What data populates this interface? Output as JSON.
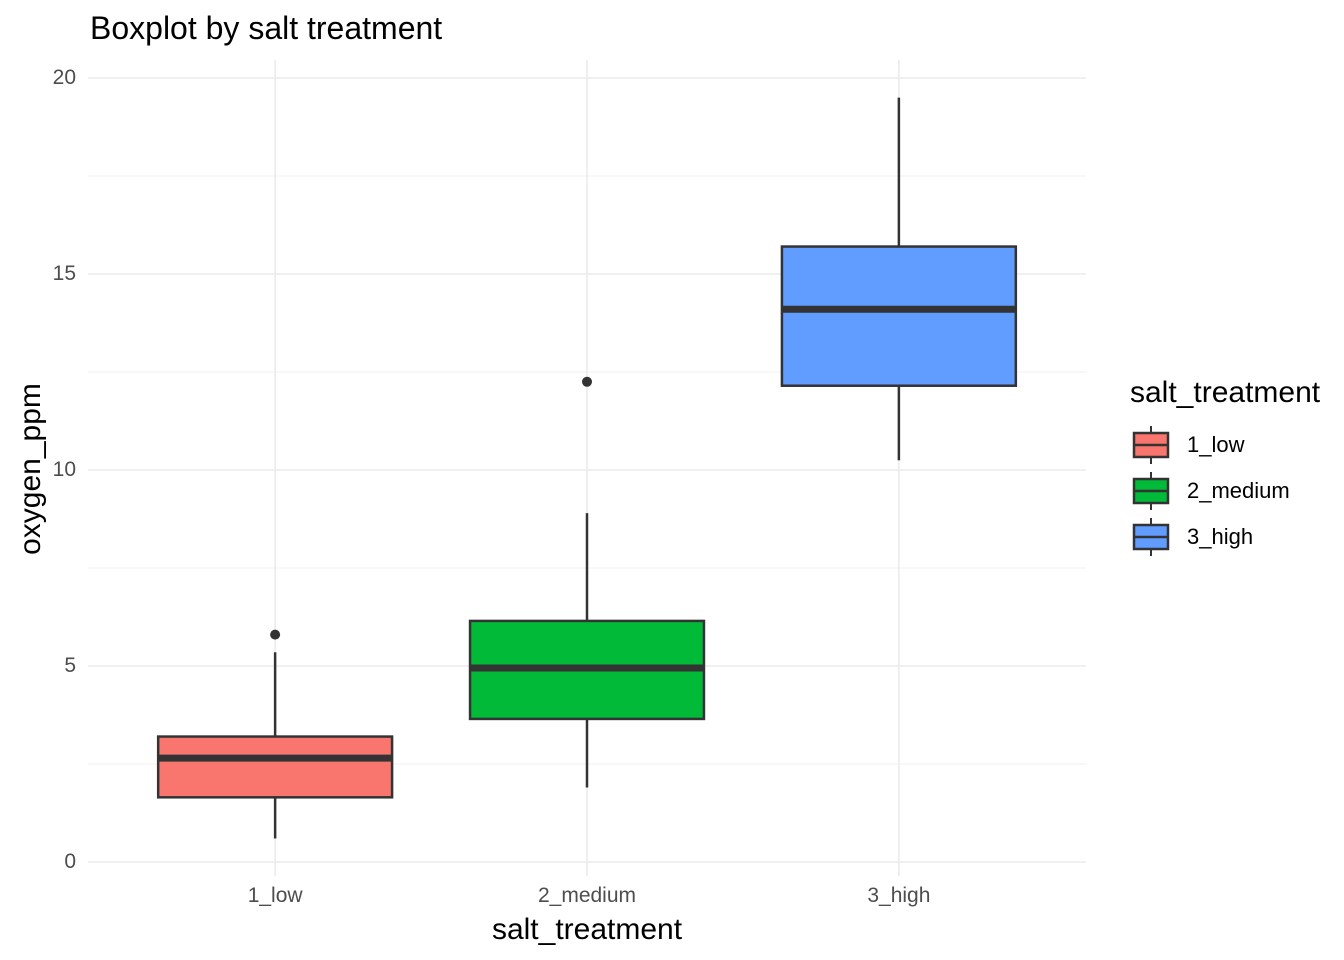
{
  "title": "Boxplot by salt treatment",
  "y_axis": {
    "title": "oxygen_ppm",
    "tick_labels": [
      "0",
      "5",
      "10",
      "15",
      "20"
    ]
  },
  "x_axis": {
    "title": "salt_treatment",
    "tick_labels": [
      "1_low",
      "2_medium",
      "3_high"
    ]
  },
  "legend": {
    "title": "salt_treatment",
    "items": [
      {
        "label": "1_low",
        "color": "#F8766D"
      },
      {
        "label": "2_medium",
        "color": "#00BA38"
      },
      {
        "label": "3_high",
        "color": "#619CFF"
      }
    ]
  },
  "colors": {
    "background": "#FFFFFF",
    "text": "#000000",
    "axis_text": "#4D4D4D",
    "grid_major": "#EBEBEB",
    "grid_minor": "#F0F0F0",
    "box_border": "#333333",
    "outlier": "#333333"
  },
  "chart_data": {
    "type": "boxplot",
    "title": "Boxplot by salt treatment",
    "xlabel": "salt_treatment",
    "ylabel": "oxygen_ppm",
    "categories": [
      "1_low",
      "2_medium",
      "3_high"
    ],
    "ylim": [
      0,
      20
    ],
    "yticks": [
      0,
      5,
      10,
      15,
      20
    ],
    "yticks_minor": [
      2.5,
      7.5,
      12.5,
      17.5
    ],
    "grid": true,
    "legend_position": "right",
    "series": [
      {
        "name": "1_low",
        "fill": "#F8766D",
        "whisker_low": 0.6,
        "q1": 1.65,
        "median": 2.65,
        "q3": 3.2,
        "whisker_high": 5.35,
        "outliers": [
          5.8
        ]
      },
      {
        "name": "2_medium",
        "fill": "#00BA38",
        "whisker_low": 1.9,
        "q1": 3.65,
        "median": 4.95,
        "q3": 6.15,
        "whisker_high": 8.9,
        "outliers": [
          12.25
        ]
      },
      {
        "name": "3_high",
        "fill": "#619CFF",
        "whisker_low": 10.25,
        "q1": 12.15,
        "median": 14.1,
        "q3": 15.7,
        "whisker_high": 19.5,
        "outliers": []
      }
    ]
  }
}
